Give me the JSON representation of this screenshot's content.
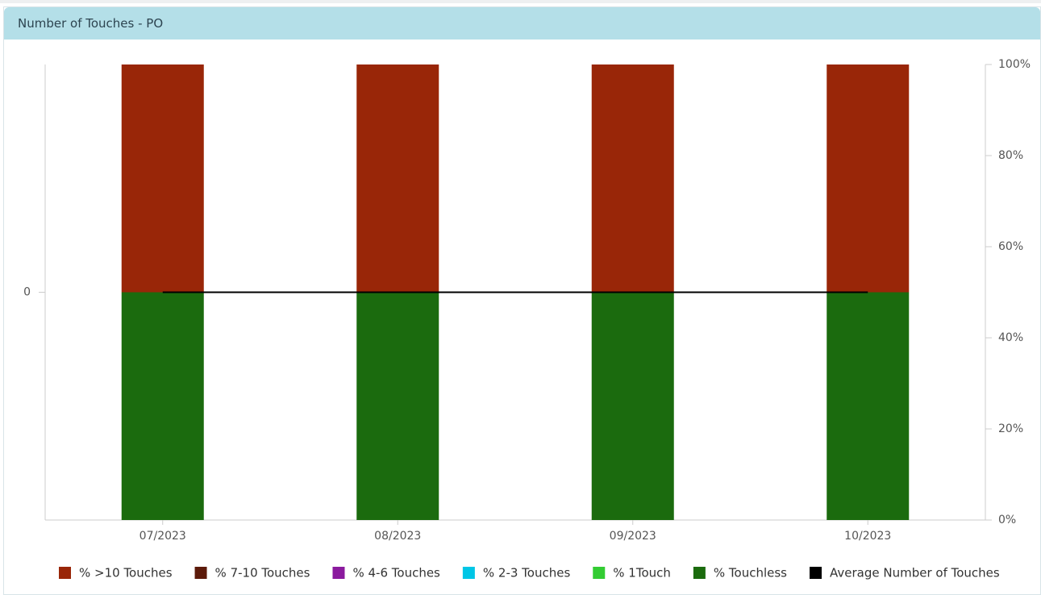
{
  "chart_data": {
    "type": "stacked-bar-line",
    "title": "Number of Touches - PO",
    "categories": [
      "07/2023",
      "08/2023",
      "09/2023",
      "10/2023"
    ],
    "series": [
      {
        "name": "% >10 Touches",
        "color": "#992608",
        "values": [
          50,
          50,
          50,
          50
        ],
        "axis": "y2"
      },
      {
        "name": "% 7-10 Touches",
        "color": "#5c1a0a",
        "values": [
          0,
          0,
          0,
          0
        ],
        "axis": "y2"
      },
      {
        "name": "% 4-6 Touches",
        "color": "#8b1a9e",
        "values": [
          0,
          0,
          0,
          0
        ],
        "axis": "y2"
      },
      {
        "name": "% 2-3 Touches",
        "color": "#00c6e6",
        "values": [
          0,
          0,
          0,
          0
        ],
        "axis": "y2"
      },
      {
        "name": "% 1Touch",
        "color": "#33cc33",
        "values": [
          0,
          0,
          0,
          0
        ],
        "axis": "y2"
      },
      {
        "name": "% Touchless",
        "color": "#1b6b0e",
        "values": [
          50,
          50,
          50,
          50
        ],
        "axis": "y2"
      },
      {
        "name": "Average Number of Touches",
        "color": "#000000",
        "values": [
          0,
          0,
          0,
          0
        ],
        "type": "line"
      }
    ],
    "ylim": [
      -1,
      1
    ],
    "yticks": [
      0
    ],
    "y2lim": [
      0,
      100
    ],
    "y2ticks": [
      {
        "value": 0,
        "label": "0%"
      },
      {
        "value": 20,
        "label": "20%"
      },
      {
        "value": 40,
        "label": "40%"
      },
      {
        "value": 60,
        "label": "60%"
      },
      {
        "value": 80,
        "label": "80%"
      },
      {
        "value": 100,
        "label": "100%"
      }
    ],
    "legend": "bottom"
  }
}
